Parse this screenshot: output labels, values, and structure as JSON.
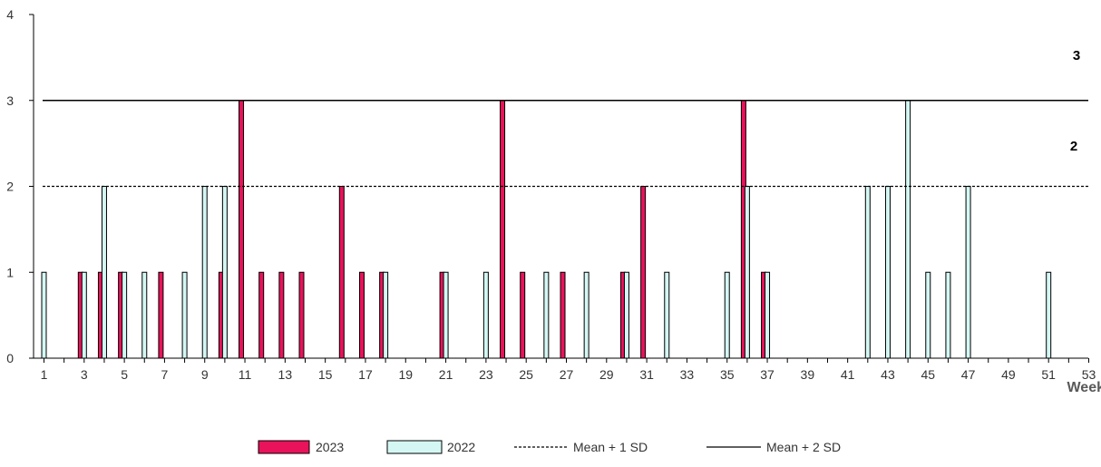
{
  "chart_data": {
    "type": "bar",
    "title": "",
    "xlabel": "Week",
    "ylabel": "",
    "x_range": [
      1,
      53
    ],
    "ylim": [
      0,
      4
    ],
    "y_ticks": [
      "0",
      "1",
      "2",
      "3",
      "4"
    ],
    "x_ticks": [
      "1",
      "3",
      "5",
      "7",
      "9",
      "11",
      "13",
      "15",
      "17",
      "19",
      "21",
      "23",
      "25",
      "27",
      "29",
      "31",
      "33",
      "35",
      "37",
      "39",
      "41",
      "43",
      "45",
      "47",
      "49",
      "51",
      "53"
    ],
    "grid": false,
    "legend_position": "bottom",
    "series": [
      {
        "name": "2023",
        "color": "#E8135A",
        "points": [
          [
            3,
            1
          ],
          [
            4,
            1
          ],
          [
            5,
            1
          ],
          [
            7,
            1
          ],
          [
            10,
            1
          ],
          [
            11,
            3
          ],
          [
            12,
            1
          ],
          [
            13,
            1
          ],
          [
            14,
            1
          ],
          [
            16,
            2
          ],
          [
            17,
            1
          ],
          [
            18,
            1
          ],
          [
            21,
            1
          ],
          [
            24,
            3
          ],
          [
            25,
            1
          ],
          [
            27,
            1
          ],
          [
            30,
            1
          ],
          [
            31,
            2
          ],
          [
            36,
            3
          ],
          [
            37,
            1
          ]
        ]
      },
      {
        "name": "2022",
        "color": "#D4F7F4",
        "points": [
          [
            1,
            1
          ],
          [
            3,
            1
          ],
          [
            4,
            2
          ],
          [
            5,
            1
          ],
          [
            6,
            1
          ],
          [
            8,
            1
          ],
          [
            9,
            2
          ],
          [
            10,
            2
          ],
          [
            18,
            1
          ],
          [
            21,
            1
          ],
          [
            23,
            1
          ],
          [
            26,
            1
          ],
          [
            28,
            1
          ],
          [
            30,
            1
          ],
          [
            32,
            1
          ],
          [
            35,
            1
          ],
          [
            36,
            2
          ],
          [
            37,
            1
          ],
          [
            42,
            2
          ],
          [
            43,
            2
          ],
          [
            44,
            3
          ],
          [
            45,
            1
          ],
          [
            46,
            1
          ],
          [
            47,
            2
          ],
          [
            51,
            1
          ]
        ]
      }
    ],
    "reference_lines": [
      {
        "name": "Mean + 1 SD",
        "value": 2,
        "style": "dashed"
      },
      {
        "name": "Mean + 2 SD",
        "value": 3,
        "style": "solid"
      }
    ],
    "annotations": [
      "3",
      "2"
    ]
  }
}
